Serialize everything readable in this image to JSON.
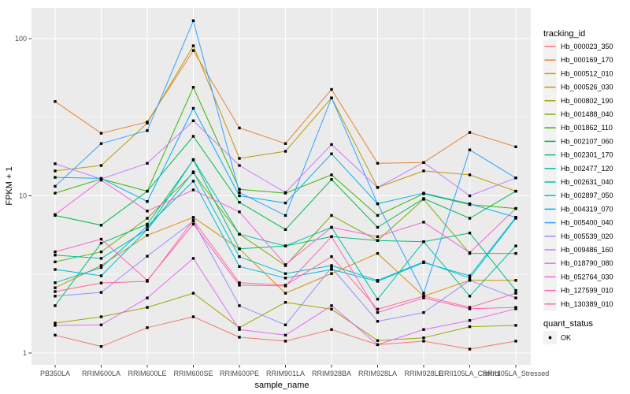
{
  "chart_data": {
    "type": "line",
    "title": "",
    "xlabel": "sample_name",
    "ylabel": "FPKM + 1",
    "y_scale": "log10",
    "ylim": [
      0.85,
      158
    ],
    "y_ticks": [
      1,
      10,
      100
    ],
    "y_tick_labels": [
      "1",
      "10",
      "100"
    ],
    "y_minor_gridlines": [
      3.1623,
      31.6228
    ],
    "grid": "on",
    "legend_position": "right",
    "legend_title": "tracking_id",
    "legend2_title": "quant_status",
    "legend2_items": [
      {
        "label": "OK",
        "marker": "black-square"
      }
    ],
    "point_marker": "black-square",
    "categories": [
      "PB350LA",
      "RRIM600LA",
      "RRIM600LE",
      "RRIM600SE",
      "RRIM600PE",
      "RRIM901LA",
      "RRIM928BA",
      "RRIM928LA",
      "RRIM928LE",
      "RRII105LA_Control",
      "RRII105LA_Stressed"
    ],
    "series": [
      {
        "name": "Hb_000023_350",
        "color": "#F8766D",
        "values": [
          1.3,
          1.1,
          1.45,
          1.7,
          1.26,
          1.19,
          1.41,
          1.13,
          1.19,
          1.06,
          1.19
        ]
      },
      {
        "name": "Hb_000169_170",
        "color": "#EA8331",
        "values": [
          39.8,
          25.0,
          29.5,
          84.0,
          27.0,
          21.5,
          47.5,
          16.1,
          16.3,
          25.3,
          20.5
        ]
      },
      {
        "name": "Hb_000512_010",
        "color": "#D89000",
        "values": [
          2.6,
          3.6,
          5.6,
          7.3,
          4.6,
          2.4,
          3.2,
          4.3,
          2.3,
          2.9,
          2.9
        ]
      },
      {
        "name": "Hb_000526_030",
        "color": "#C09B00",
        "values": [
          14.4,
          15.6,
          29.0,
          90.0,
          17.3,
          19.2,
          42.0,
          11.3,
          14.4,
          13.6,
          10.7
        ]
      },
      {
        "name": "Hb_000802_190",
        "color": "#A3A500",
        "values": [
          1.55,
          1.7,
          1.95,
          2.4,
          1.45,
          2.1,
          1.9,
          1.2,
          1.25,
          1.47,
          1.5
        ]
      },
      {
        "name": "Hb_001488_040",
        "color": "#7CAE00",
        "values": [
          3.8,
          4.4,
          7.2,
          14.0,
          5.7,
          3.6,
          7.5,
          5.2,
          9.5,
          4.3,
          4.3
        ]
      },
      {
        "name": "Hb_001862_110",
        "color": "#39B600",
        "values": [
          10.4,
          12.8,
          10.7,
          49.0,
          11.0,
          10.4,
          13.6,
          7.5,
          10.3,
          8.8,
          8.3
        ]
      },
      {
        "name": "Hb_002107_060",
        "color": "#00BB4E",
        "values": [
          7.5,
          6.5,
          10.7,
          23.9,
          9.1,
          6.1,
          12.7,
          6.3,
          9.6,
          7.2,
          10.7
        ]
      },
      {
        "name": "Hb_002301_170",
        "color": "#00BF7D",
        "values": [
          2.0,
          5.0,
          6.6,
          16.9,
          4.6,
          4.8,
          5.5,
          5.2,
          5.1,
          5.8,
          2.5
        ]
      },
      {
        "name": "Hb_002477_120",
        "color": "#00C1A3",
        "values": [
          4.2,
          4.0,
          6.1,
          17.0,
          5.7,
          4.8,
          6.3,
          2.2,
          5.1,
          2.3,
          4.8
        ]
      },
      {
        "name": "Hb_002631_040",
        "color": "#00BFC4",
        "values": [
          3.4,
          3.1,
          6.1,
          14.2,
          4.1,
          3.2,
          3.6,
          2.9,
          3.8,
          3.0,
          7.2
        ]
      },
      {
        "name": "Hb_002897_050",
        "color": "#00BAE0",
        "values": [
          2.8,
          3.5,
          6.4,
          12.4,
          3.55,
          3.0,
          3.4,
          2.86,
          3.76,
          3.1,
          7.3
        ]
      },
      {
        "name": "Hb_004319_070",
        "color": "#00B0F6",
        "values": [
          13.1,
          12.9,
          9.2,
          36.0,
          10.0,
          9.0,
          18.5,
          8.9,
          10.4,
          8.9,
          7.3
        ]
      },
      {
        "name": "Hb_005400_040",
        "color": "#35A2FF",
        "values": [
          11.5,
          21.5,
          26.0,
          130.0,
          10.5,
          7.5,
          42.0,
          8.9,
          2.4,
          19.6,
          13.0
        ]
      },
      {
        "name": "Hb_005539_020",
        "color": "#9590FF",
        "values": [
          2.3,
          2.43,
          4.13,
          6.9,
          2.0,
          1.51,
          3.5,
          1.59,
          1.81,
          2.9,
          2.24
        ]
      },
      {
        "name": "Hb_009486_160",
        "color": "#C77CFF",
        "values": [
          16.0,
          12.8,
          16.1,
          30.0,
          15.6,
          10.5,
          21.2,
          11.3,
          16.3,
          10.0,
          13.0
        ]
      },
      {
        "name": "Hb_018790_080",
        "color": "#E76BF3",
        "values": [
          1.5,
          1.51,
          2.24,
          4.0,
          1.41,
          1.3,
          2.0,
          1.13,
          1.41,
          1.61,
          1.91
        ]
      },
      {
        "name": "Hb_052764_030",
        "color": "#FA62DB",
        "values": [
          7.6,
          12.6,
          8.0,
          10.9,
          7.9,
          3.65,
          6.3,
          5.5,
          6.8,
          4.35,
          8.3
        ]
      },
      {
        "name": "Hb_127599_010",
        "color": "#FF62BC",
        "values": [
          4.4,
          5.3,
          2.9,
          6.6,
          2.7,
          2.67,
          5.5,
          1.81,
          2.24,
          1.91,
          1.95
        ]
      },
      {
        "name": "Hb_130389_010",
        "color": "#FF6A98",
        "values": [
          2.46,
          2.79,
          2.86,
          7.0,
          2.8,
          2.7,
          4.1,
          1.9,
          2.3,
          1.95,
          2.4
        ]
      }
    ],
    "colors": {
      "panel_bg": "#EBEBEB",
      "gridline": "#FFFFFF",
      "tick_mark": "#333333",
      "tick_label": "#4D4D4D",
      "axis_title": "#000000",
      "legend_key_bg": "#F2F2F2",
      "point": "#000000"
    }
  }
}
